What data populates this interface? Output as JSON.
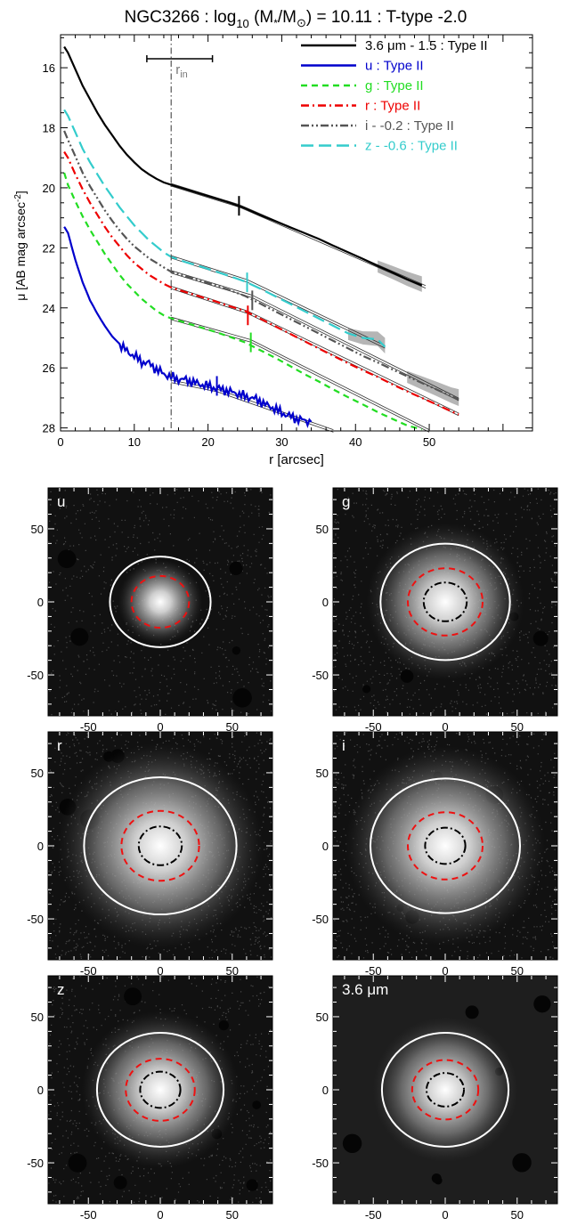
{
  "chart_data": [
    {
      "type": "line",
      "title_parts": [
        "NGC3266 : log",
        "10",
        " (M",
        "*",
        "/M",
        "⊙",
        ") = 10.11 : T-type -2.0"
      ],
      "title": "NGC3266 : log10 (M*/M⊙) = 10.11 : T-type -2.0",
      "xlabel": "r [arcsec]",
      "ylabel_parts": [
        "μ [AB mag arcsec",
        "-2",
        "]"
      ],
      "ylabel": "μ [AB mag arcsec-2]",
      "xlim": [
        0,
        64
      ],
      "ylim": [
        28.1,
        14.9
      ],
      "y_inverted": true,
      "x_major_ticks": [
        0,
        10,
        20,
        30,
        40,
        50
      ],
      "y_major_ticks": [
        16,
        18,
        20,
        22,
        24,
        26,
        28
      ],
      "legend_placement": "top-right",
      "rin": {
        "label_main": "r",
        "label_sub": "in",
        "value": 15.0,
        "bar_range": [
          11.7,
          20.6
        ],
        "bar_y": 15.7
      },
      "series": [
        {
          "name": "3.6 μm - 1.5 : Type II",
          "color": "#000000",
          "dash": "solid",
          "x": [
            0.5,
            1,
            2,
            3,
            4,
            5,
            6,
            7,
            8,
            9,
            10,
            11,
            12,
            13,
            14,
            15,
            17,
            19,
            21,
            23,
            25,
            27,
            29,
            31,
            33,
            35,
            37,
            39,
            41,
            43,
            45,
            47,
            49
          ],
          "y": [
            15.3,
            15.5,
            16.05,
            16.6,
            17.05,
            17.5,
            17.9,
            18.25,
            18.6,
            18.9,
            19.15,
            19.38,
            19.55,
            19.7,
            19.82,
            19.9,
            20.05,
            20.2,
            20.35,
            20.5,
            20.68,
            20.9,
            21.1,
            21.3,
            21.5,
            21.7,
            21.93,
            22.15,
            22.37,
            22.6,
            22.82,
            23.05,
            23.25
          ],
          "break": {
            "x": 24.2,
            "y": 20.6
          },
          "fit_inner": {
            "x": [
              15,
              24.2
            ],
            "y": [
              19.9,
              20.6
            ]
          },
          "fit_outer": {
            "x": [
              24.2,
              49.5
            ],
            "y": [
              20.6,
              23.3
            ]
          },
          "shade_from": 42
        },
        {
          "name": "u : Type II",
          "color": "#0000cc",
          "dash": "solid",
          "x": [
            0.5,
            1,
            2,
            3,
            4,
            5,
            6,
            7,
            8,
            9,
            10,
            11,
            12,
            13,
            14,
            15,
            16,
            17,
            18,
            19,
            20,
            21,
            22,
            23,
            24,
            25,
            26,
            27,
            28,
            29,
            30,
            31,
            32,
            33,
            34
          ],
          "y": [
            21.3,
            21.5,
            22.4,
            23.15,
            23.75,
            24.2,
            24.6,
            24.95,
            25.2,
            25.45,
            25.6,
            25.8,
            25.85,
            26.05,
            26.2,
            26.3,
            26.38,
            26.4,
            26.48,
            26.55,
            26.6,
            26.68,
            26.72,
            26.8,
            26.85,
            26.95,
            27.0,
            27.1,
            27.25,
            27.35,
            27.5,
            27.6,
            27.7,
            27.75,
            27.8
          ],
          "break": {
            "x": 21.2,
            "y": 26.6
          },
          "fit_inner": {
            "x": [
              15,
              21.2
            ],
            "y": [
              26.45,
              26.75
            ]
          },
          "fit_outer": {
            "x": [
              21.2,
              37
            ],
            "y": [
              26.75,
              28.1
            ]
          }
        },
        {
          "name": "g : Type II",
          "color": "#22dd22",
          "dash": "dash",
          "x": [
            0.5,
            1,
            2,
            3,
            4,
            5,
            6,
            7,
            8,
            9,
            10,
            11,
            12,
            13,
            14,
            15,
            17,
            19,
            21,
            23,
            25,
            27,
            29,
            31,
            33,
            35,
            37,
            39,
            41,
            43,
            45,
            47,
            49
          ],
          "y": [
            19.5,
            19.9,
            20.45,
            20.95,
            21.4,
            21.8,
            22.2,
            22.55,
            22.9,
            23.2,
            23.45,
            23.7,
            23.9,
            24.1,
            24.25,
            24.35,
            24.5,
            24.65,
            24.8,
            24.97,
            25.15,
            25.4,
            25.65,
            25.92,
            26.2,
            26.45,
            26.72,
            26.98,
            27.22,
            27.47,
            27.7,
            27.92,
            28.05
          ],
          "break": {
            "x": 25.8,
            "y": 25.15
          },
          "fit_inner": {
            "x": [
              15,
              25.8
            ],
            "y": [
              24.35,
              25.1
            ]
          },
          "fit_outer": {
            "x": [
              25.8,
              50
            ],
            "y": [
              25.1,
              28.1
            ]
          }
        },
        {
          "name": "r : Type II",
          "color": "#ee0000",
          "dash": "dashdot",
          "x": [
            0.5,
            1,
            2,
            3,
            4,
            5,
            6,
            7,
            8,
            9,
            10,
            11,
            12,
            13,
            14,
            15,
            17,
            19,
            21,
            23,
            25,
            27,
            29,
            31,
            33,
            35,
            37,
            39,
            41,
            43,
            45,
            47,
            49,
            51,
            53,
            54
          ],
          "y": [
            18.8,
            19.0,
            19.55,
            20.05,
            20.5,
            20.9,
            21.3,
            21.65,
            21.95,
            22.25,
            22.5,
            22.7,
            22.9,
            23.05,
            23.2,
            23.32,
            23.48,
            23.63,
            23.78,
            23.95,
            24.1,
            24.35,
            24.6,
            24.85,
            25.1,
            25.35,
            25.6,
            25.85,
            26.08,
            26.3,
            26.55,
            26.78,
            27.0,
            27.22,
            27.45,
            27.55
          ],
          "break": {
            "x": 25.4,
            "y": 24.25
          },
          "fit_inner": {
            "x": [
              15,
              25.4
            ],
            "y": [
              23.32,
              24.15
            ]
          },
          "fit_outer": {
            "x": [
              25.4,
              54
            ],
            "y": [
              24.15,
              27.55
            ]
          }
        },
        {
          "name": "i - -0.2 : Type II",
          "color": "#555555",
          "dash": "dashdotdot",
          "x": [
            0.5,
            1,
            2,
            3,
            4,
            5,
            6,
            7,
            8,
            9,
            10,
            11,
            12,
            13,
            14,
            15,
            17,
            19,
            21,
            23,
            25,
            27,
            29,
            31,
            33,
            35,
            37,
            39,
            41,
            43,
            45,
            47,
            49,
            51,
            53,
            54
          ],
          "y": [
            18.1,
            18.4,
            18.95,
            19.5,
            19.95,
            20.35,
            20.75,
            21.1,
            21.42,
            21.7,
            21.95,
            22.15,
            22.35,
            22.5,
            22.65,
            22.8,
            22.95,
            23.1,
            23.25,
            23.42,
            23.6,
            23.85,
            24.1,
            24.35,
            24.6,
            24.85,
            25.1,
            25.35,
            25.6,
            25.82,
            26.05,
            26.28,
            26.5,
            26.72,
            26.95,
            27.05
          ],
          "break": {
            "x": 26.0,
            "y": 23.75
          },
          "fit_inner": {
            "x": [
              15,
              26.0
            ],
            "y": [
              22.8,
              23.62
            ]
          },
          "fit_outer": {
            "x": [
              26.0,
              54
            ],
            "y": [
              23.62,
              27.05
            ]
          },
          "shade_from": 46
        },
        {
          "name": "z - -0.6 : Type II",
          "color": "#33cccc",
          "dash": "longdash",
          "x": [
            0.5,
            1,
            2,
            3,
            4,
            5,
            6,
            7,
            8,
            9,
            10,
            11,
            12,
            13,
            14,
            15,
            17,
            19,
            21,
            23,
            25,
            27,
            29,
            31,
            33,
            35,
            37,
            39,
            41,
            43,
            44
          ],
          "y": [
            17.4,
            17.6,
            18.15,
            18.7,
            19.15,
            19.55,
            19.95,
            20.3,
            20.65,
            20.95,
            21.25,
            21.5,
            21.75,
            21.95,
            22.15,
            22.3,
            22.48,
            22.62,
            22.78,
            22.95,
            23.12,
            23.35,
            23.6,
            23.85,
            24.1,
            24.35,
            24.6,
            24.85,
            25.0,
            25.05,
            25.3
          ],
          "break": {
            "x": 25.3,
            "y": 23.15
          },
          "fit_inner": {
            "x": [
              15,
              25.3
            ],
            "y": [
              22.3,
              23.1
            ]
          },
          "fit_outer": {
            "x": [
              25.3,
              44
            ],
            "y": [
              23.1,
              25.3
            ]
          },
          "shade_from": 38
        }
      ]
    },
    {
      "type": "image",
      "panels": [
        {
          "label": "u",
          "r_white": 35,
          "r_red": 20,
          "r_black": 0,
          "glow": 14,
          "noise_density": 0.55
        },
        {
          "label": "g",
          "r_white": 45,
          "r_red": 26,
          "r_black": 15,
          "glow": 26,
          "noise_density": 0.75
        },
        {
          "label": "r",
          "r_white": 53,
          "r_red": 27,
          "r_black": 15,
          "glow": 34,
          "noise_density": 0.85
        },
        {
          "label": "i",
          "r_white": 52,
          "r_red": 26,
          "r_black": 14,
          "glow": 33,
          "noise_density": 0.8
        },
        {
          "label": "z",
          "r_white": 44,
          "r_red": 24,
          "r_black": 14,
          "glow": 26,
          "noise_density": 0.6
        },
        {
          "label": "3.6 μm",
          "r_white": 44,
          "r_red": 23,
          "r_black": 13,
          "glow": 24,
          "noise_density": 0.0
        }
      ],
      "x_ticks": [
        -50,
        0,
        50
      ],
      "y_ticks": [
        50,
        0,
        -50
      ],
      "extent": [
        -78,
        78
      ]
    }
  ]
}
